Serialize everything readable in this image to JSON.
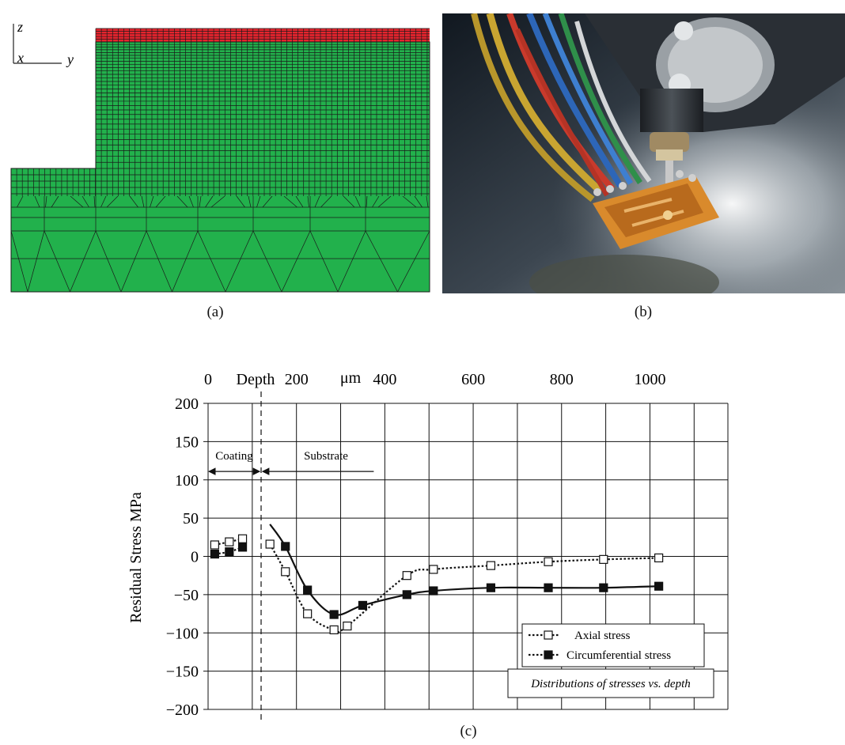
{
  "panel_a": {
    "caption": "(a)",
    "axis_z": "z",
    "axis_x": "x",
    "axis_y": "y",
    "colors": {
      "coating": "#e8242e",
      "substrate": "#22b14c",
      "mesh": "#1a1a1a"
    }
  },
  "panel_b": {
    "caption": "(b)"
  },
  "panel_c": {
    "caption": "(c)",
    "legend_box": "Distributions of stresses vs. depth",
    "region_coating": "Coating",
    "region_substrate": "Substrate",
    "top_axis_label": "Depth",
    "top_axis_unit": "μm"
  },
  "chart_data": {
    "type": "line",
    "xlabel": "Depth μm",
    "ylabel": "Residual Stress MPa",
    "xlim": [
      0,
      1100
    ],
    "ylim": [
      -200,
      200
    ],
    "x_ticks": [
      "0",
      "200",
      "400",
      "600",
      "800",
      "1000"
    ],
    "x_tick_values": [
      0,
      200,
      400,
      600,
      800,
      1000
    ],
    "y_ticks": [
      "200",
      "150",
      "100",
      "50",
      "0",
      "−50",
      "−100",
      "−150",
      "−200"
    ],
    "y_tick_values": [
      200,
      150,
      100,
      50,
      0,
      -50,
      -100,
      -150,
      -200
    ],
    "grid": true,
    "legend_position": "bottom-right",
    "coating_boundary": 120,
    "series": [
      {
        "name": "Axial stress",
        "marker": "open-square",
        "line": "dotted",
        "coating_points": [
          [
            15,
            15
          ],
          [
            48,
            19
          ],
          [
            78,
            23
          ]
        ],
        "substrate_points": [
          [
            140,
            16
          ],
          [
            175,
            -20
          ],
          [
            225,
            -75
          ],
          [
            285,
            -96
          ],
          [
            315,
            -91
          ],
          [
            450,
            -25
          ],
          [
            510,
            -17
          ],
          [
            640,
            -12
          ],
          [
            770,
            -7
          ],
          [
            895,
            -4
          ],
          [
            1020,
            -2
          ]
        ]
      },
      {
        "name": "Circumferential stress",
        "marker": "filled-square",
        "line": "solid",
        "coating_points": [
          [
            15,
            3
          ],
          [
            48,
            6
          ],
          [
            78,
            12
          ]
        ],
        "substrate_start": [
          140,
          42
        ],
        "substrate_points": [
          [
            175,
            13
          ],
          [
            225,
            -44
          ],
          [
            285,
            -76
          ],
          [
            350,
            -64
          ],
          [
            450,
            -50
          ],
          [
            510,
            -45
          ],
          [
            640,
            -41
          ],
          [
            770,
            -41
          ],
          [
            895,
            -41
          ],
          [
            1020,
            -39
          ]
        ]
      }
    ]
  }
}
